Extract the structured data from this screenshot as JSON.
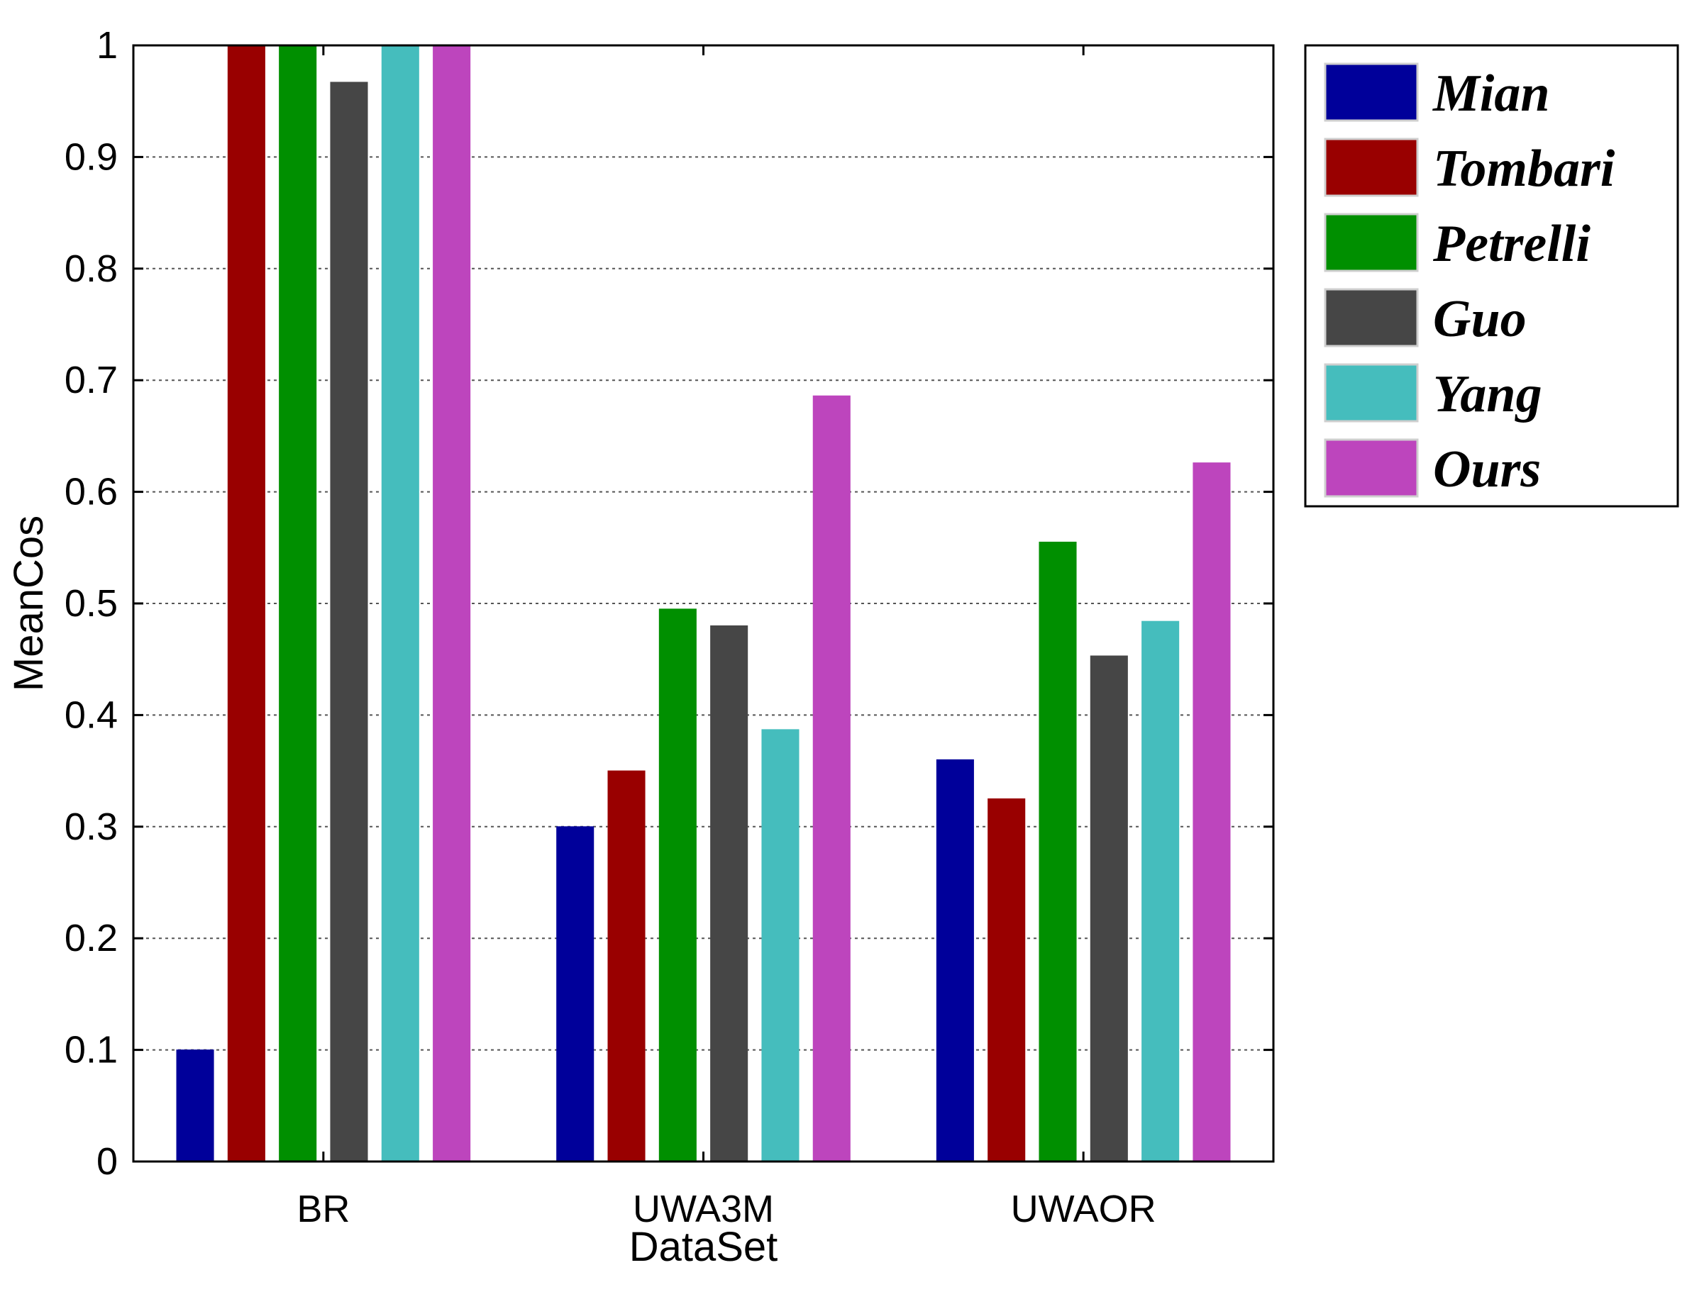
{
  "chart_data": {
    "type": "bar",
    "xlabel": "DataSet",
    "ylabel": "MeanCos",
    "ylim": [
      0,
      1
    ],
    "yticks": [
      "0",
      "0.1",
      "0.2",
      "0.3",
      "0.4",
      "0.5",
      "0.6",
      "0.7",
      "0.8",
      "0.9",
      "1"
    ],
    "categories": [
      "BR",
      "UWA3M",
      "UWAOR"
    ],
    "grid": true,
    "legend_position": "outside-top-right",
    "series": [
      {
        "name": "Mian",
        "color": "#00009a",
        "values": [
          0.1,
          0.3,
          0.36
        ]
      },
      {
        "name": "Tombari",
        "color": "#990000",
        "values": [
          1.0,
          0.35,
          0.325
        ]
      },
      {
        "name": "Petrelli",
        "color": "#008f00",
        "values": [
          1.0,
          0.495,
          0.555
        ]
      },
      {
        "name": "Guo",
        "color": "#464646",
        "values": [
          0.967,
          0.48,
          0.453
        ]
      },
      {
        "name": "Yang",
        "color": "#45bdbd",
        "values": [
          1.0,
          0.387,
          0.484
        ]
      },
      {
        "name": "Ours",
        "color": "#bd45bd",
        "values": [
          1.0,
          0.686,
          0.626
        ]
      }
    ]
  }
}
